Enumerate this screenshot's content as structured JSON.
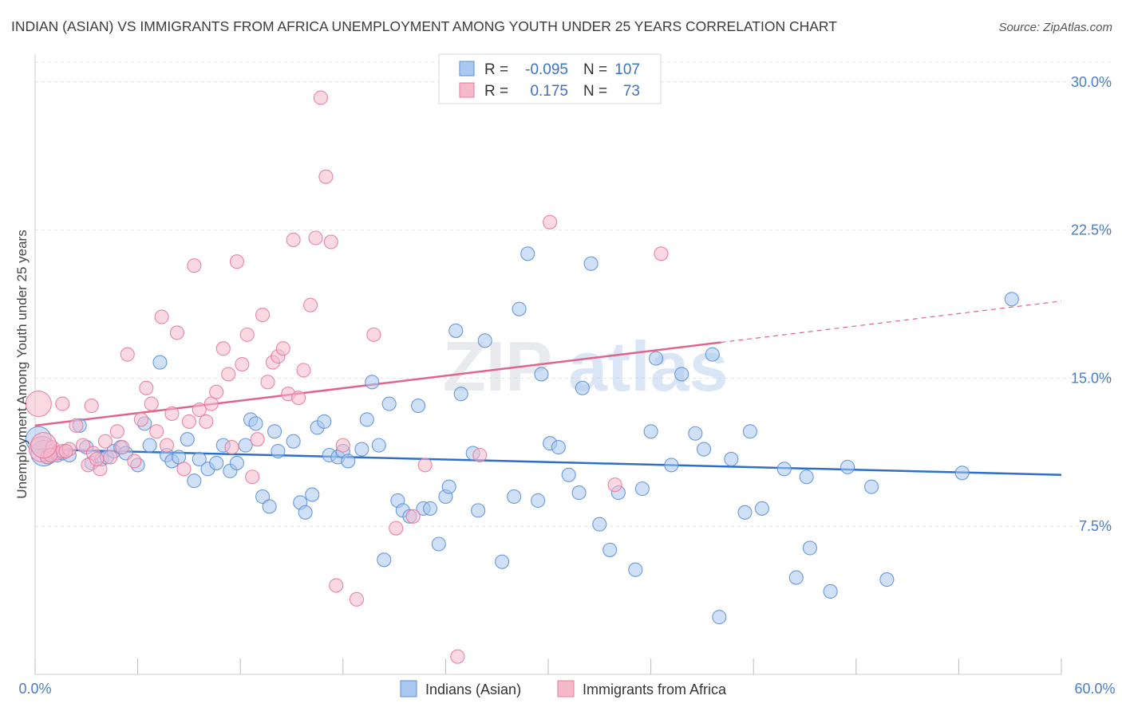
{
  "title": "INDIAN (ASIAN) VS IMMIGRANTS FROM AFRICA UNEMPLOYMENT AMONG YOUTH UNDER 25 YEARS CORRELATION CHART",
  "source": "Source: ZipAtlas.com",
  "watermark": {
    "zip": "ZIP",
    "atlas": "atlas"
  },
  "legend_top": {
    "r_label": "R =",
    "n_label": "N =",
    "rows": [
      {
        "r": "-0.095",
        "n": "107"
      },
      {
        "r": "0.175",
        "n": "73"
      }
    ]
  },
  "chart_data": {
    "type": "scatter",
    "title": "INDIAN (ASIAN) VS IMMIGRANTS FROM AFRICA UNEMPLOYMENT AMONG YOUTH UNDER 25 YEARS CORRELATION CHART",
    "xlabel": "",
    "ylabel": "Unemployment Among Youth under 25 years",
    "xlim": [
      0,
      60
    ],
    "ylim": [
      0,
      31
    ],
    "x_ticks": [
      "0.0%",
      "60.0%"
    ],
    "y_ticks": [
      {
        "value": 7.5,
        "label": "7.5%"
      },
      {
        "value": 15.0,
        "label": "15.0%"
      },
      {
        "value": 22.5,
        "label": "22.5%"
      },
      {
        "value": 30.0,
        "label": "30.0%"
      }
    ],
    "grid": true,
    "colors": {
      "blue": "#5b8fd9",
      "blue_fill": "#aac8f0",
      "blue_line": "#2e6fcc",
      "pink": "#e8799c",
      "pink_fill": "#f5b9cc",
      "pink_line": "#e0648c"
    },
    "series": [
      {
        "name": "Indians (Asian)",
        "color": "blue",
        "trend": {
          "x0": 0,
          "y0": 11.4,
          "x1": 60,
          "y1": 10.1,
          "dashed_from": null
        },
        "points": [
          [
            0.2,
            11.9
          ],
          [
            0.5,
            11.2
          ],
          [
            0.8,
            11.0
          ],
          [
            1.0,
            11.3
          ],
          [
            1.3,
            11.1
          ],
          [
            1.6,
            11.2
          ],
          [
            2.0,
            11.1
          ],
          [
            2.6,
            12.6
          ],
          [
            3.0,
            11.5
          ],
          [
            3.3,
            10.7
          ],
          [
            3.9,
            10.9
          ],
          [
            4.2,
            11.0
          ],
          [
            4.6,
            11.3
          ],
          [
            5.0,
            11.5
          ],
          [
            5.3,
            11.2
          ],
          [
            6.0,
            10.6
          ],
          [
            6.4,
            12.7
          ],
          [
            6.7,
            11.6
          ],
          [
            7.3,
            15.8
          ],
          [
            7.7,
            11.1
          ],
          [
            8.0,
            10.8
          ],
          [
            8.4,
            11.0
          ],
          [
            8.9,
            11.9
          ],
          [
            9.3,
            9.8
          ],
          [
            9.6,
            10.9
          ],
          [
            10.1,
            10.4
          ],
          [
            10.6,
            10.7
          ],
          [
            11.0,
            11.6
          ],
          [
            11.4,
            10.3
          ],
          [
            11.8,
            10.7
          ],
          [
            12.3,
            11.6
          ],
          [
            12.6,
            12.9
          ],
          [
            12.9,
            12.7
          ],
          [
            13.3,
            9.0
          ],
          [
            13.7,
            8.5
          ],
          [
            14.0,
            12.3
          ],
          [
            14.2,
            11.3
          ],
          [
            15.1,
            11.8
          ],
          [
            15.5,
            8.7
          ],
          [
            15.8,
            8.2
          ],
          [
            16.2,
            9.1
          ],
          [
            16.5,
            12.5
          ],
          [
            16.9,
            12.8
          ],
          [
            17.2,
            11.1
          ],
          [
            17.7,
            11.0
          ],
          [
            18.0,
            11.3
          ],
          [
            18.3,
            10.8
          ],
          [
            19.1,
            11.4
          ],
          [
            19.4,
            12.9
          ],
          [
            19.7,
            14.8
          ],
          [
            20.1,
            11.6
          ],
          [
            20.4,
            5.8
          ],
          [
            20.7,
            13.7
          ],
          [
            21.2,
            8.8
          ],
          [
            21.5,
            8.3
          ],
          [
            21.9,
            8.0
          ],
          [
            22.4,
            13.6
          ],
          [
            22.7,
            8.4
          ],
          [
            23.1,
            8.4
          ],
          [
            23.6,
            6.6
          ],
          [
            24.0,
            9.0
          ],
          [
            24.2,
            9.5
          ],
          [
            24.6,
            17.4
          ],
          [
            24.9,
            14.2
          ],
          [
            25.6,
            11.2
          ],
          [
            25.9,
            8.3
          ],
          [
            26.3,
            16.9
          ],
          [
            27.3,
            5.7
          ],
          [
            28.0,
            9.0
          ],
          [
            28.3,
            18.5
          ],
          [
            28.8,
            21.3
          ],
          [
            29.4,
            8.8
          ],
          [
            29.6,
            15.2
          ],
          [
            30.1,
            11.7
          ],
          [
            30.6,
            11.5
          ],
          [
            31.2,
            10.1
          ],
          [
            31.8,
            9.2
          ],
          [
            32.0,
            14.5
          ],
          [
            32.5,
            20.8
          ],
          [
            33.0,
            7.6
          ],
          [
            33.6,
            6.3
          ],
          [
            34.1,
            9.2
          ],
          [
            35.1,
            5.3
          ],
          [
            35.5,
            9.4
          ],
          [
            36.0,
            12.3
          ],
          [
            36.3,
            16.0
          ],
          [
            37.2,
            10.6
          ],
          [
            37.8,
            15.2
          ],
          [
            38.6,
            12.2
          ],
          [
            39.1,
            11.4
          ],
          [
            39.6,
            16.2
          ],
          [
            40.0,
            2.9
          ],
          [
            40.7,
            10.9
          ],
          [
            41.5,
            8.2
          ],
          [
            41.8,
            12.3
          ],
          [
            42.5,
            8.4
          ],
          [
            43.8,
            10.4
          ],
          [
            44.5,
            4.9
          ],
          [
            45.1,
            10.0
          ],
          [
            45.3,
            6.4
          ],
          [
            46.5,
            4.2
          ],
          [
            47.5,
            10.5
          ],
          [
            48.9,
            9.5
          ],
          [
            49.8,
            4.8
          ],
          [
            54.2,
            10.2
          ],
          [
            57.1,
            19.0
          ]
        ]
      },
      {
        "name": "Immigrants from Africa",
        "color": "pink",
        "trend": {
          "x0": 0,
          "y0": 12.6,
          "x1": 60,
          "y1": 18.9,
          "dashed_from": 40.1
        },
        "points": [
          [
            0.4,
            11.4
          ],
          [
            0.7,
            11.0
          ],
          [
            1.0,
            11.5
          ],
          [
            1.3,
            11.2
          ],
          [
            1.6,
            11.3
          ],
          [
            2.0,
            11.4
          ],
          [
            2.4,
            12.6
          ],
          [
            2.8,
            11.6
          ],
          [
            3.1,
            10.6
          ],
          [
            3.4,
            11.2
          ],
          [
            3.8,
            10.4
          ],
          [
            4.1,
            11.8
          ],
          [
            4.4,
            11.0
          ],
          [
            4.8,
            12.3
          ],
          [
            5.1,
            11.5
          ],
          [
            5.4,
            16.2
          ],
          [
            5.8,
            10.8
          ],
          [
            6.2,
            12.9
          ],
          [
            6.5,
            14.5
          ],
          [
            6.8,
            13.7
          ],
          [
            7.1,
            12.3
          ],
          [
            7.4,
            18.1
          ],
          [
            7.7,
            11.6
          ],
          [
            8.0,
            13.2
          ],
          [
            8.3,
            17.3
          ],
          [
            8.7,
            10.4
          ],
          [
            9.0,
            12.8
          ],
          [
            9.3,
            20.7
          ],
          [
            9.6,
            13.4
          ],
          [
            10.0,
            12.8
          ],
          [
            10.3,
            13.7
          ],
          [
            10.6,
            14.3
          ],
          [
            11.0,
            16.5
          ],
          [
            11.3,
            15.2
          ],
          [
            11.5,
            11.5
          ],
          [
            11.8,
            20.9
          ],
          [
            12.1,
            15.7
          ],
          [
            12.4,
            17.2
          ],
          [
            12.7,
            10.0
          ],
          [
            13.0,
            11.9
          ],
          [
            13.3,
            18.2
          ],
          [
            13.6,
            14.8
          ],
          [
            13.9,
            15.8
          ],
          [
            14.2,
            16.1
          ],
          [
            14.5,
            16.5
          ],
          [
            14.8,
            14.2
          ],
          [
            15.1,
            22.0
          ],
          [
            15.4,
            14.0
          ],
          [
            15.7,
            15.4
          ],
          [
            16.1,
            18.7
          ],
          [
            16.4,
            22.1
          ],
          [
            16.7,
            29.2
          ],
          [
            17.0,
            25.2
          ],
          [
            17.3,
            21.9
          ],
          [
            17.6,
            4.5
          ],
          [
            18.0,
            11.6
          ],
          [
            18.8,
            3.8
          ],
          [
            19.8,
            17.2
          ],
          [
            21.1,
            7.4
          ],
          [
            22.1,
            8.0
          ],
          [
            22.8,
            10.6
          ],
          [
            24.7,
            0.9
          ],
          [
            26.0,
            11.1
          ],
          [
            30.1,
            22.9
          ],
          [
            33.9,
            9.6
          ],
          [
            36.6,
            21.3
          ],
          [
            0.2,
            13.7
          ],
          [
            1.6,
            13.7
          ],
          [
            3.3,
            13.6
          ],
          [
            0.9,
            11.1
          ],
          [
            1.8,
            11.3
          ],
          [
            0.5,
            11.6
          ],
          [
            3.6,
            10.9
          ]
        ]
      }
    ]
  },
  "bottom_legend": [
    {
      "label": "Indians (Asian)",
      "color": "blue"
    },
    {
      "label": "Immigrants from Africa",
      "color": "pink"
    }
  ]
}
